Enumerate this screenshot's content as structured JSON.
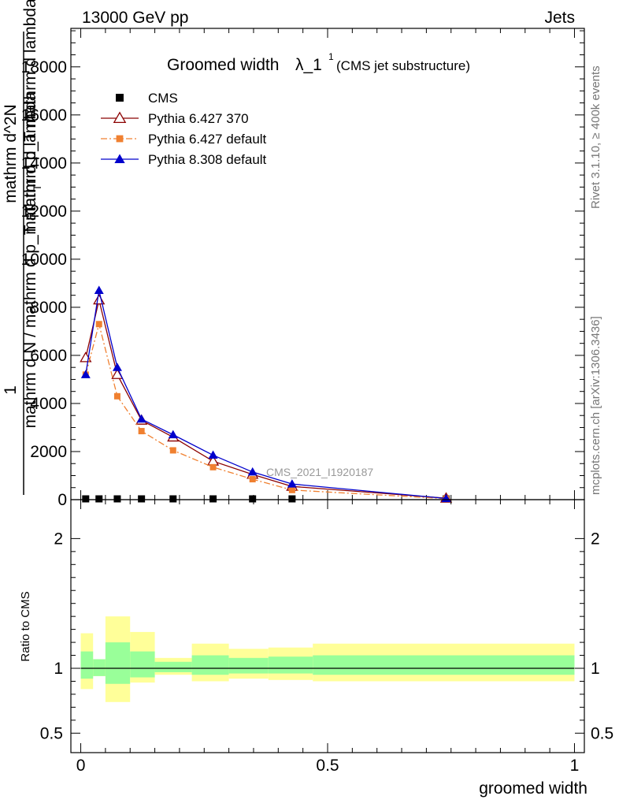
{
  "header": {
    "left": "13000 GeV pp",
    "right": "Jets"
  },
  "side_text": {
    "rivet": "Rivet 3.1.10, ≥ 400k events",
    "mcplots": "mcplots.cern.ch [arXiv:1306.3436]"
  },
  "watermark": "CMS_2021_I1920187",
  "chart_data": [
    {
      "type": "line",
      "title_main": "Groomed width",
      "title_sym": "λ_1",
      "title_sup": "1",
      "title_sub": "(CMS jet substructure)",
      "ylabel_top": "1",
      "ylabel_lines": [
        "mathrm d N / mathrm d p_T mathrm d lambda",
        "mathrm d^2N",
        "mathrm d p_T mathrm d lambda"
      ],
      "ylabel_sub": "T",
      "ylim": [
        0,
        19600
      ],
      "xlim": [
        -0.02,
        1.02
      ],
      "yticks": [
        {
          "v": 0,
          "label": "0"
        },
        {
          "v": 2000,
          "label": "2000"
        },
        {
          "v": 4000,
          "label": "4000"
        },
        {
          "v": 6000,
          "label": "6000"
        },
        {
          "v": 8000,
          "label": "8000"
        },
        {
          "v": 10000,
          "label": "10000"
        },
        {
          "v": 12000,
          "label": "12000"
        },
        {
          "v": 14000,
          "label": "14000"
        },
        {
          "v": 16000,
          "label": "16000"
        },
        {
          "v": 18000,
          "label": "18000"
        }
      ],
      "series": [
        {
          "name": "CMS",
          "color": "#000000",
          "marker": "square",
          "x": [
            0.01,
            0.037,
            0.074,
            0.123,
            0.187,
            0.268,
            0.348,
            0.428,
            0.74
          ],
          "y": [
            20,
            20,
            20,
            20,
            20,
            20,
            20,
            20,
            20
          ]
        },
        {
          "name": "Pythia 6.427 370",
          "color": "#8b0000",
          "marker": "triangle-open",
          "x": [
            0.01,
            0.037,
            0.074,
            0.123,
            0.187,
            0.268,
            0.348,
            0.428,
            0.74
          ],
          "y": [
            5900,
            8300,
            5200,
            3300,
            2600,
            1600,
            1050,
            550,
            60
          ]
        },
        {
          "name": "Pythia 6.427 default",
          "color": "#f08030",
          "marker": "square-small",
          "dash": "dashdot",
          "x": [
            0.01,
            0.037,
            0.074,
            0.123,
            0.187,
            0.268,
            0.348,
            0.428,
            0.74
          ],
          "y": [
            5200,
            7300,
            4300,
            2850,
            2050,
            1350,
            850,
            400,
            40
          ]
        },
        {
          "name": "Pythia 8.308 default",
          "color": "#0000cc",
          "marker": "triangle",
          "x": [
            0.01,
            0.037,
            0.074,
            0.123,
            0.187,
            0.268,
            0.348,
            0.428,
            0.74
          ],
          "y": [
            5200,
            8700,
            5500,
            3350,
            2700,
            1850,
            1150,
            650,
            50
          ]
        }
      ]
    },
    {
      "type": "area",
      "ylabel": "Ratio to CMS",
      "xlabel": "groomed width",
      "xlim": [
        -0.02,
        1.02
      ],
      "ylim": [
        0.35,
        2.3
      ],
      "yticks": [
        {
          "v": 0.5,
          "label": "0.5"
        },
        {
          "v": 1,
          "label": "1"
        },
        {
          "v": 2,
          "label": "2"
        }
      ],
      "xticks": [
        {
          "v": 0,
          "label": "0"
        },
        {
          "v": 0.5,
          "label": "0.5"
        },
        {
          "v": 1,
          "label": "1"
        }
      ],
      "bin_edges": [
        0,
        0.025,
        0.05,
        0.1,
        0.15,
        0.225,
        0.3,
        0.38,
        0.47,
        1.0
      ],
      "inner_band": [
        [
          0.92,
          1.13
        ],
        [
          0.94,
          1.07
        ],
        [
          0.88,
          1.2
        ],
        [
          0.93,
          1.13
        ],
        [
          0.97,
          1.05
        ],
        [
          0.95,
          1.1
        ],
        [
          0.96,
          1.08
        ],
        [
          0.96,
          1.09
        ],
        [
          0.95,
          1.1
        ]
      ],
      "outer_band": [
        [
          0.84,
          1.27
        ],
        [
          0.94,
          1.07
        ],
        [
          0.74,
          1.4
        ],
        [
          0.89,
          1.28
        ],
        [
          0.95,
          1.08
        ],
        [
          0.9,
          1.19
        ],
        [
          0.92,
          1.15
        ],
        [
          0.91,
          1.16
        ],
        [
          0.9,
          1.19
        ]
      ],
      "band_colors": {
        "inner": "#99ff99",
        "outer": "#ffff99"
      },
      "reference": 1
    }
  ]
}
